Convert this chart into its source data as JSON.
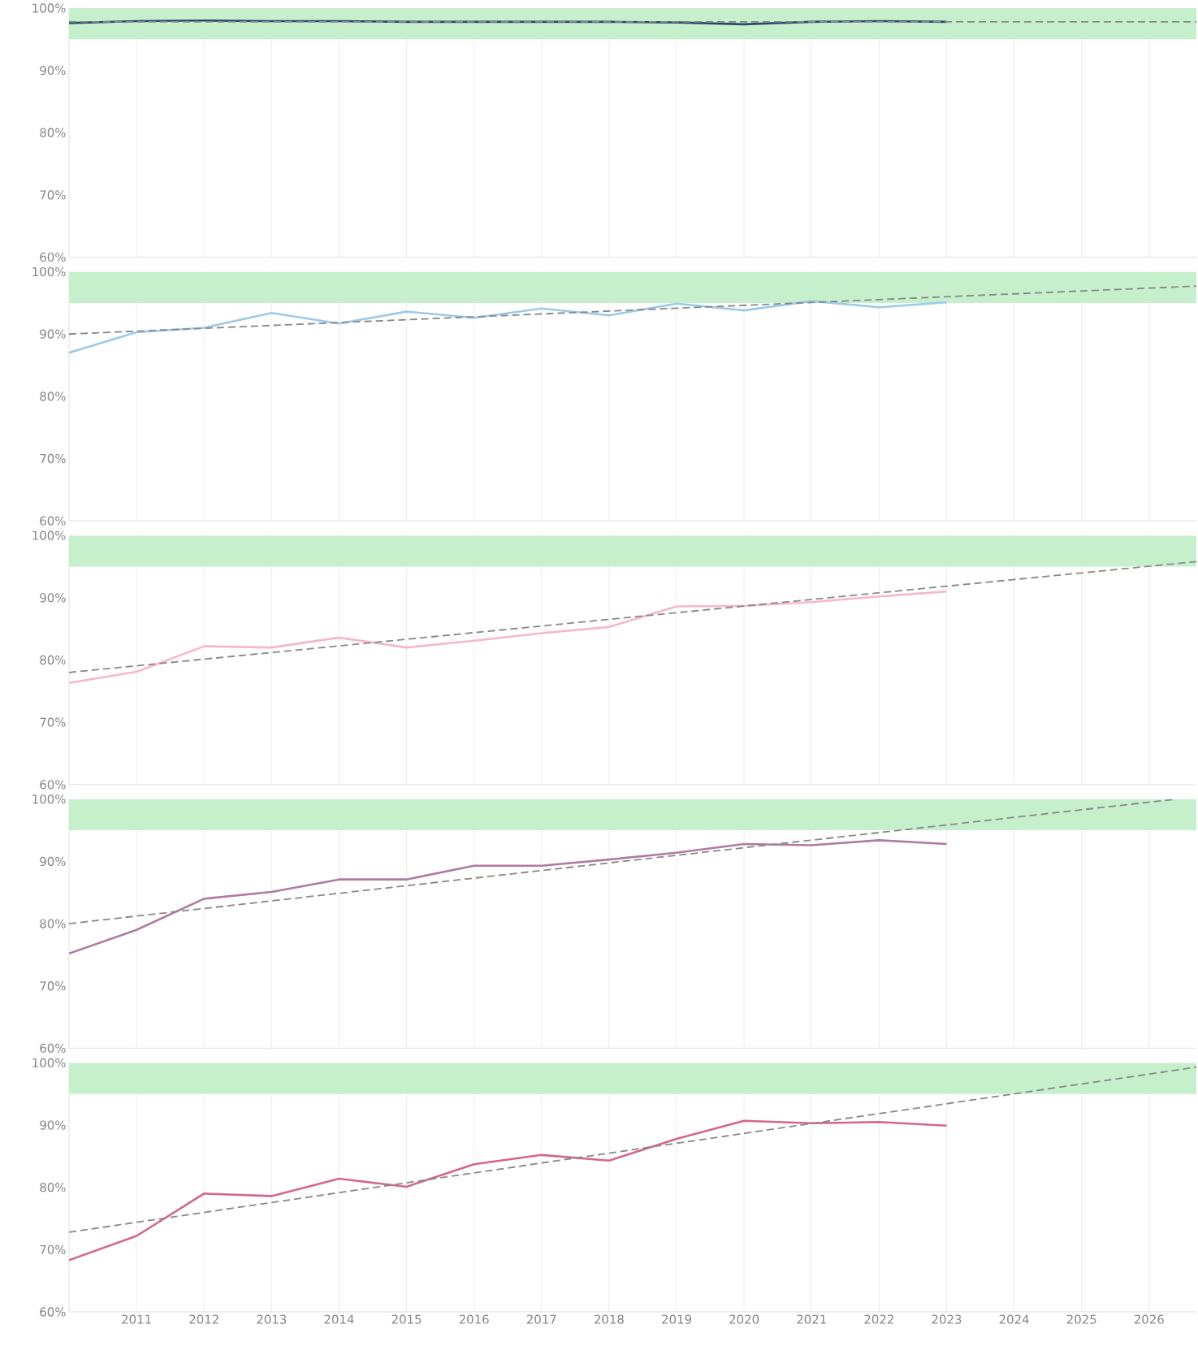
{
  "chart_data": [
    {
      "type": "line",
      "xlim": [
        2010,
        2026.7
      ],
      "ylim": [
        60,
        100
      ],
      "xticks": [
        2011,
        2012,
        2013,
        2014,
        2015,
        2016,
        2017,
        2018,
        2019,
        2020,
        2021,
        2022,
        2023,
        2024,
        2025,
        2026
      ],
      "yticks": [
        {
          "value": 60,
          "label": "60%"
        },
        {
          "value": 70,
          "label": "70%"
        },
        {
          "value": 80,
          "label": "80%"
        },
        {
          "value": 90,
          "label": "90%"
        },
        {
          "value": 100,
          "label": "100%"
        }
      ],
      "tick_labels": "y",
      "grid": "x",
      "bands": [
        {
          "axis": "y",
          "from": 95,
          "to": 100,
          "color": "#c6f0cc"
        }
      ],
      "x": [
        2010,
        2011,
        2012,
        2013,
        2014,
        2015,
        2016,
        2017,
        2018,
        2019,
        2020,
        2021,
        2022,
        2023
      ],
      "series": [
        {
          "type": "line",
          "color": "#2b4a6f",
          "values": [
            97.6,
            97.9,
            98.0,
            97.9,
            97.9,
            97.8,
            97.8,
            97.8,
            97.8,
            97.7,
            97.4,
            97.8,
            97.9,
            97.8
          ]
        },
        {
          "type": "line",
          "color": "#888888",
          "line_style": "dashed",
          "x": [
            2010,
            2026.7
          ],
          "values": [
            97.8,
            97.8
          ]
        }
      ]
    },
    {
      "type": "line",
      "xlim": [
        2010,
        2026.7
      ],
      "ylim": [
        60,
        100
      ],
      "xticks": [
        2011,
        2012,
        2013,
        2014,
        2015,
        2016,
        2017,
        2018,
        2019,
        2020,
        2021,
        2022,
        2023,
        2024,
        2025,
        2026
      ],
      "yticks": [
        {
          "value": 60,
          "label": "60%"
        },
        {
          "value": 70,
          "label": "70%"
        },
        {
          "value": 80,
          "label": "80%"
        },
        {
          "value": 90,
          "label": "90%"
        },
        {
          "value": 100,
          "label": "100%"
        }
      ],
      "tick_labels": "y",
      "grid": "x",
      "bands": [
        {
          "axis": "y",
          "from": 95,
          "to": 100,
          "color": "#c6f0cc"
        }
      ],
      "x": [
        2010,
        2011,
        2012,
        2013,
        2014,
        2015,
        2016,
        2017,
        2018,
        2019,
        2020,
        2021,
        2022,
        2023
      ],
      "series": [
        {
          "type": "line",
          "color": "#9ecae9",
          "values": [
            87.0,
            90.3,
            91.0,
            93.4,
            91.7,
            93.6,
            92.6,
            94.1,
            93.0,
            94.9,
            93.8,
            95.3,
            94.3,
            95.1
          ]
        },
        {
          "type": "line",
          "color": "#888888",
          "line_style": "dashed",
          "x": [
            2010,
            2026.7
          ],
          "values": [
            90.0,
            97.7
          ]
        }
      ]
    },
    {
      "type": "line",
      "xlim": [
        2010,
        2026.7
      ],
      "ylim": [
        60,
        100
      ],
      "xticks": [
        2011,
        2012,
        2013,
        2014,
        2015,
        2016,
        2017,
        2018,
        2019,
        2020,
        2021,
        2022,
        2023,
        2024,
        2025,
        2026
      ],
      "yticks": [
        {
          "value": 60,
          "label": "60%"
        },
        {
          "value": 70,
          "label": "70%"
        },
        {
          "value": 80,
          "label": "80%"
        },
        {
          "value": 90,
          "label": "90%"
        },
        {
          "value": 100,
          "label": "100%"
        }
      ],
      "tick_labels": "y",
      "grid": "x",
      "bands": [
        {
          "axis": "y",
          "from": 95,
          "to": 100,
          "color": "#c6f0cc"
        }
      ],
      "x": [
        2010,
        2011,
        2012,
        2013,
        2014,
        2015,
        2016,
        2017,
        2018,
        2019,
        2020,
        2021,
        2022,
        2023
      ],
      "series": [
        {
          "type": "line",
          "color": "#f7b6cf",
          "values": [
            76.3,
            78.1,
            82.2,
            82.0,
            83.6,
            82.0,
            83.1,
            84.3,
            85.3,
            88.6,
            88.7,
            89.3,
            90.2,
            91.0
          ]
        },
        {
          "type": "line",
          "color": "#888888",
          "line_style": "dashed",
          "x": [
            2010,
            2026.7
          ],
          "values": [
            78.0,
            95.8
          ]
        }
      ]
    },
    {
      "type": "line",
      "xlim": [
        2010,
        2026.7
      ],
      "ylim": [
        60,
        100
      ],
      "xticks": [
        2011,
        2012,
        2013,
        2014,
        2015,
        2016,
        2017,
        2018,
        2019,
        2020,
        2021,
        2022,
        2023,
        2024,
        2025,
        2026
      ],
      "yticks": [
        {
          "value": 60,
          "label": "60%"
        },
        {
          "value": 70,
          "label": "70%"
        },
        {
          "value": 80,
          "label": "80%"
        },
        {
          "value": 90,
          "label": "90%"
        },
        {
          "value": 100,
          "label": "100%"
        }
      ],
      "tick_labels": "y",
      "grid": "x",
      "bands": [
        {
          "axis": "y",
          "from": 95,
          "to": 100,
          "color": "#c6f0cc"
        }
      ],
      "x": [
        2010,
        2011,
        2012,
        2013,
        2014,
        2015,
        2016,
        2017,
        2018,
        2019,
        2020,
        2021,
        2022,
        2023
      ],
      "series": [
        {
          "type": "line",
          "color": "#b07aa1",
          "values": [
            75.2,
            79.0,
            84.0,
            85.1,
            87.1,
            87.1,
            89.3,
            89.3,
            90.3,
            91.4,
            92.8,
            92.6,
            93.4,
            92.8
          ]
        },
        {
          "type": "line",
          "color": "#888888",
          "line_style": "dashed",
          "x": [
            2010,
            2026.4
          ],
          "values": [
            80.0,
            100.0
          ]
        }
      ]
    },
    {
      "type": "line",
      "xlim": [
        2010,
        2026.7
      ],
      "ylim": [
        60,
        100
      ],
      "xticks": [
        2011,
        2012,
        2013,
        2014,
        2015,
        2016,
        2017,
        2018,
        2019,
        2020,
        2021,
        2022,
        2023,
        2024,
        2025,
        2026
      ],
      "yticks": [
        {
          "value": 60,
          "label": "60%"
        },
        {
          "value": 70,
          "label": "70%"
        },
        {
          "value": 80,
          "label": "80%"
        },
        {
          "value": 90,
          "label": "90%"
        },
        {
          "value": 100,
          "label": "100%"
        }
      ],
      "grid": "x",
      "bands": [
        {
          "axis": "y",
          "from": 95,
          "to": 100,
          "color": "#c6f0cc"
        }
      ],
      "x": [
        2010,
        2011,
        2012,
        2013,
        2014,
        2015,
        2016,
        2017,
        2018,
        2019,
        2020,
        2021,
        2022,
        2023
      ],
      "series": [
        {
          "type": "line",
          "color": "#d4668e",
          "values": [
            68.3,
            72.2,
            79.0,
            78.6,
            81.4,
            80.1,
            83.7,
            85.2,
            84.3,
            87.8,
            90.7,
            90.3,
            90.5,
            89.9
          ]
        },
        {
          "type": "line",
          "color": "#888888",
          "line_style": "dashed",
          "x": [
            2010,
            2026.7
          ],
          "values": [
            72.8,
            99.3
          ]
        }
      ]
    }
  ]
}
